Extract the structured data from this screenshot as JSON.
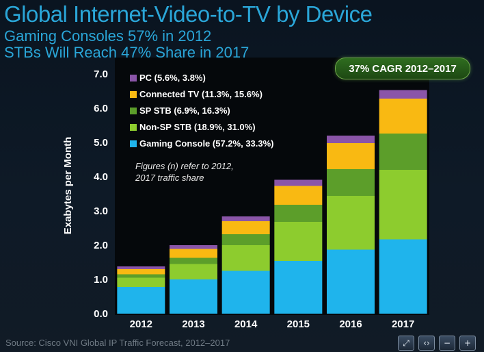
{
  "header": {
    "title": "Global Internet-Video-to-TV by Device",
    "subtitle_1": "Gaming Consoles 57% in 2012",
    "subtitle_2": "STBs Will Reach 47% Share in 2017",
    "badge": "37% CAGR 2012–2017"
  },
  "footer": {
    "source": "Source: Cisco VNI Global IP Traffic Forecast, 2012–2017"
  },
  "nav_icons": [
    "fit-screen-icon",
    "prev-next-icon",
    "zoom-out-icon",
    "zoom-in-icon"
  ],
  "chart_data": {
    "type": "bar",
    "stacked": true,
    "categories": [
      "2012",
      "2013",
      "2014",
      "2015",
      "2016",
      "2017"
    ],
    "ylabel": "Exabytes per Month",
    "ylim": [
      0,
      7
    ],
    "yticks": [
      "0.0",
      "1.0",
      "2.0",
      "3.0",
      "4.0",
      "5.0",
      "6.0",
      "7.0"
    ],
    "series": [
      {
        "name": "Gaming Console (57.2%, 33.3%)",
        "color": "#1fb4ec",
        "values": [
          0.78,
          1.0,
          1.25,
          1.54,
          1.87,
          2.17
        ]
      },
      {
        "name": "Non-SP STB (18.9%, 31.0%)",
        "color": "#8dcc2e",
        "values": [
          0.27,
          0.45,
          0.75,
          1.14,
          1.57,
          2.03
        ]
      },
      {
        "name": "SP STB (6.9%, 16.3%)",
        "color": "#5c9e2a",
        "values": [
          0.1,
          0.18,
          0.32,
          0.5,
          0.78,
          1.06
        ]
      },
      {
        "name": "Connected TV (11.3%, 15.6%)",
        "color": "#f9b912",
        "values": [
          0.15,
          0.26,
          0.38,
          0.55,
          0.76,
          1.02
        ]
      },
      {
        "name": "PC (5.6%, 3.8%)",
        "color": "#8a55a8",
        "values": [
          0.08,
          0.11,
          0.14,
          0.18,
          0.22,
          0.25
        ]
      }
    ],
    "legend_order": [
      4,
      3,
      2,
      1,
      0
    ],
    "note": [
      "Figures (n) refer to 2012,",
      "2017 traffic share"
    ]
  }
}
